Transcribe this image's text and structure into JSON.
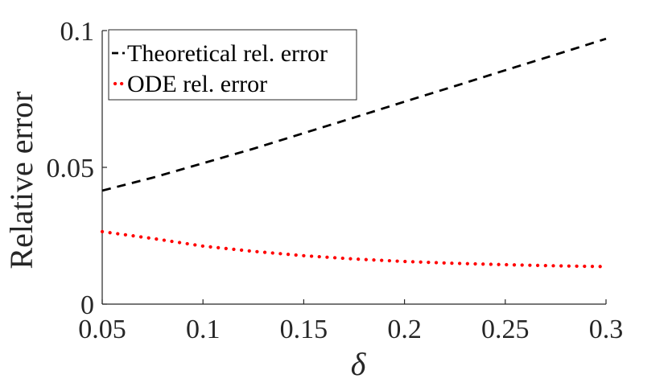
{
  "chart_data": {
    "type": "line",
    "title": "",
    "xlabel": "δ",
    "ylabel": "Relative error",
    "xlim": [
      0.05,
      0.3
    ],
    "ylim": [
      0,
      0.1
    ],
    "x_ticks": [
      "0.05",
      "0.1",
      "0.15",
      "0.2",
      "0.25",
      "0.3"
    ],
    "y_ticks": [
      "0",
      "0.05",
      "0.1"
    ],
    "grid": false,
    "legend_position": "top-left",
    "series": [
      {
        "name": "Theoretical rel. error",
        "style": "dashed",
        "color": "#000000",
        "x": [
          0.05,
          0.075,
          0.1,
          0.125,
          0.15,
          0.175,
          0.2,
          0.225,
          0.25,
          0.275,
          0.3
        ],
        "y": [
          0.0415,
          0.0462,
          0.0515,
          0.0568,
          0.0625,
          0.0682,
          0.074,
          0.0797,
          0.0855,
          0.0912,
          0.097
        ]
      },
      {
        "name": "ODE rel. error",
        "style": "dotted",
        "color": "#ff0000",
        "x": [
          0.05,
          0.075,
          0.1,
          0.125,
          0.15,
          0.175,
          0.2,
          0.225,
          0.25,
          0.275,
          0.3
        ],
        "y": [
          0.0265,
          0.024,
          0.0212,
          0.0193,
          0.0177,
          0.0165,
          0.0156,
          0.0149,
          0.0144,
          0.014,
          0.0137
        ]
      }
    ]
  }
}
